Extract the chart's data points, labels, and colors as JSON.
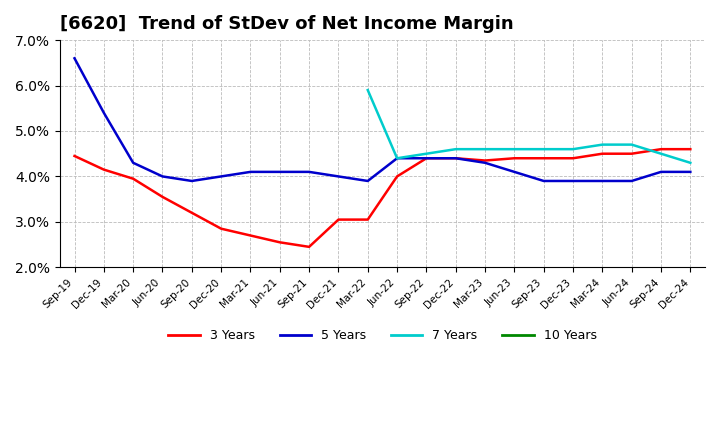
{
  "title": "[6620]  Trend of StDev of Net Income Margin",
  "title_fontsize": 13,
  "ylabel": "",
  "ylim": [
    0.02,
    0.07
  ],
  "yticks": [
    0.02,
    0.03,
    0.04,
    0.05,
    0.06,
    0.07
  ],
  "background_color": "#ffffff",
  "plot_bg_color": "#ffffff",
  "grid_color": "#bbbbbb",
  "x_labels": [
    "Sep-19",
    "Dec-19",
    "Mar-20",
    "Jun-20",
    "Sep-20",
    "Dec-20",
    "Mar-21",
    "Jun-21",
    "Sep-21",
    "Dec-21",
    "Mar-22",
    "Jun-22",
    "Sep-22",
    "Dec-22",
    "Mar-23",
    "Jun-23",
    "Sep-23",
    "Dec-23",
    "Mar-24",
    "Jun-24",
    "Sep-24",
    "Dec-24"
  ],
  "series": {
    "3yr": {
      "color": "#ff0000",
      "values": [
        0.0445,
        0.0415,
        0.0395,
        0.0355,
        0.032,
        0.0285,
        0.027,
        0.0255,
        0.0245,
        0.0305,
        0.0305,
        0.04,
        0.044,
        0.044,
        0.0435,
        0.044,
        0.044,
        0.044,
        0.045,
        0.045,
        0.046,
        0.046
      ]
    },
    "5yr": {
      "color": "#0000cc",
      "values": [
        0.066,
        0.054,
        0.043,
        0.04,
        0.039,
        0.04,
        0.041,
        0.041,
        0.041,
        0.04,
        0.039,
        0.044,
        0.044,
        0.044,
        0.043,
        0.041,
        0.039,
        0.039,
        0.039,
        0.039,
        0.041,
        0.041
      ]
    },
    "7yr": {
      "color": "#00cccc",
      "values": [
        null,
        null,
        null,
        null,
        null,
        null,
        null,
        null,
        null,
        null,
        0.059,
        0.044,
        0.045,
        0.046,
        0.046,
        0.046,
        0.046,
        0.046,
        0.047,
        0.047,
        0.045,
        0.043
      ]
    },
    "10yr": {
      "color": "#008800",
      "values": [
        null,
        null,
        null,
        null,
        null,
        null,
        null,
        null,
        null,
        null,
        null,
        null,
        null,
        null,
        null,
        null,
        null,
        null,
        null,
        null,
        null,
        null
      ]
    }
  },
  "legend_labels": [
    "3 Years",
    "5 Years",
    "7 Years",
    "10 Years"
  ],
  "legend_colors": [
    "#ff0000",
    "#0000cc",
    "#00cccc",
    "#008800"
  ]
}
